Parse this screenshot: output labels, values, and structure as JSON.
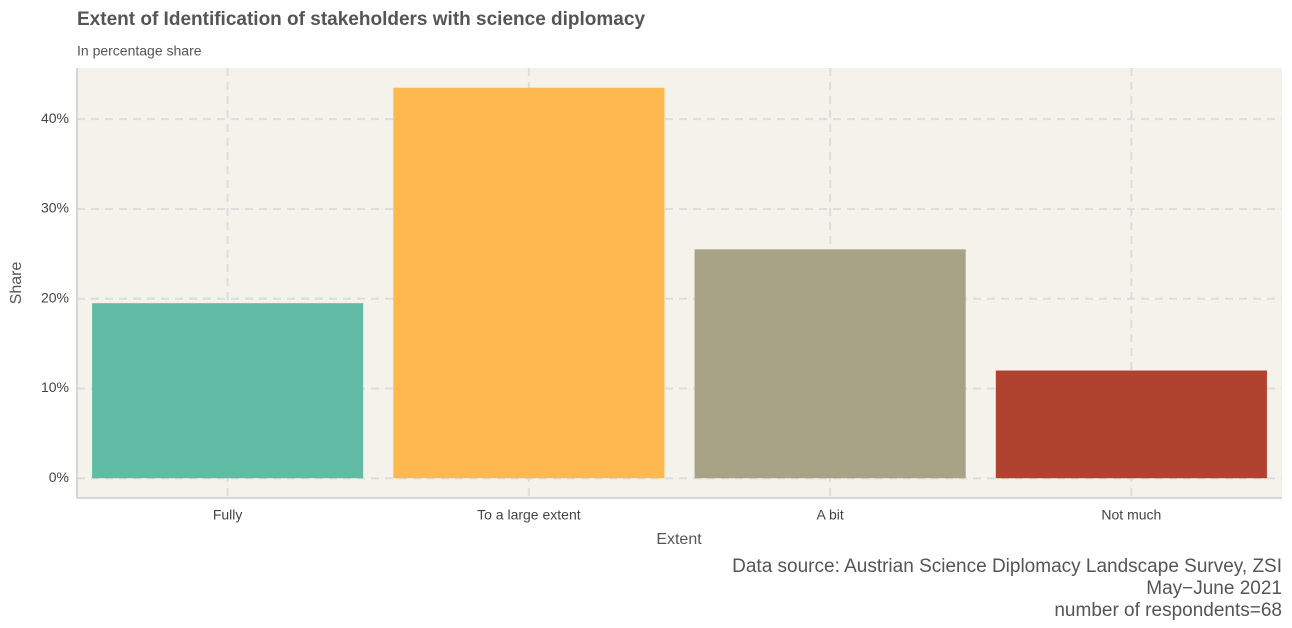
{
  "chart_data": {
    "type": "bar",
    "title": "Extent of Identification of stakeholders with science diplomacy",
    "subtitle": "In percentage share",
    "x_label": "Extent",
    "y_label": "Share",
    "caption": [
      "Data source: Austrian Science Diplomacy Landscape Survey, ZSI",
      "May−June 2021",
      "number of respondents=68"
    ],
    "categories": [
      "Fully",
      "To a large extent",
      "A bit",
      "Not much"
    ],
    "values": [
      19.5,
      43.5,
      25.5,
      12
    ],
    "colors": [
      "#62bba5",
      "#fdb84f",
      "#a8a386",
      "#b0432f"
    ],
    "ylim": [
      -2.2,
      45.7
    ],
    "yticks": [
      {
        "value": 0,
        "label": "0%"
      },
      {
        "value": 10,
        "label": "10%"
      },
      {
        "value": 20,
        "label": "20%"
      },
      {
        "value": 30,
        "label": "30%"
      },
      {
        "value": 40,
        "label": "40%"
      }
    ],
    "grid": true
  }
}
